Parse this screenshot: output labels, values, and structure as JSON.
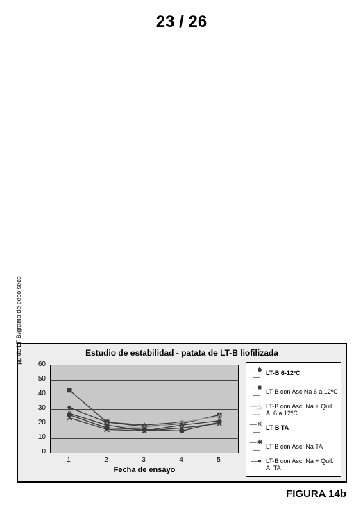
{
  "page_number": "23 / 26",
  "figure_caption": "FIGURA 14b",
  "chart": {
    "type": "line",
    "title": "Estudio de estabilidad - patata de LT-B liofilizada",
    "xlabel": "Fecha de ensayo",
    "ylabel": "µg de LT-B/gramo de peso seco",
    "xlim": [
      0.5,
      5.5
    ],
    "ylim": [
      0,
      60
    ],
    "ytick_step": 10,
    "yticks": [
      0,
      10,
      20,
      30,
      40,
      50,
      60
    ],
    "xticks": [
      1,
      2,
      3,
      4,
      5
    ],
    "background_color": "#ededed",
    "plot_bg": "#c8c8c8",
    "grid_color": "#444444",
    "title_fontsize": 12,
    "label_fontsize": 11,
    "tick_fontsize": 10,
    "legend_fontsize": 9,
    "series": [
      {
        "name": "LT-B 6-12ºC",
        "marker": "diamond",
        "symbol": "◆",
        "color": "#3a3a3a",
        "weight": "bold",
        "values": [
          31,
          21,
          19,
          21,
          25
        ]
      },
      {
        "name": "LT-B con Asc.Na 6 a 12ºC",
        "marker": "square",
        "symbol": "■",
        "color": "#3a3a3a",
        "weight": "normal",
        "values": [
          43,
          21,
          18,
          20,
          26
        ]
      },
      {
        "name": "LT-B con Asc. Na + Quil. A, 6 a 12ºC",
        "marker": "triangle",
        "symbol": "△",
        "color": "#aaaaaa",
        "weight": "normal",
        "values": [
          27,
          19,
          17,
          21,
          25
        ]
      },
      {
        "name": "LT-B  TA",
        "marker": "x",
        "symbol": "✕",
        "color": "#3a3a3a",
        "weight": "bold",
        "values": [
          24,
          16,
          15,
          17,
          20
        ]
      },
      {
        "name": "LT-B con Asc. Na TA",
        "marker": "asterisk",
        "symbol": "✱",
        "color": "#3a3a3a",
        "weight": "normal",
        "values": [
          27,
          19,
          15,
          19,
          22
        ]
      },
      {
        "name": "LT-B con Asc. Na + Quil. A, TA",
        "marker": "circle",
        "symbol": "●",
        "color": "#3a3a3a",
        "weight": "normal",
        "values": [
          26,
          17,
          16,
          15,
          21
        ]
      }
    ]
  }
}
